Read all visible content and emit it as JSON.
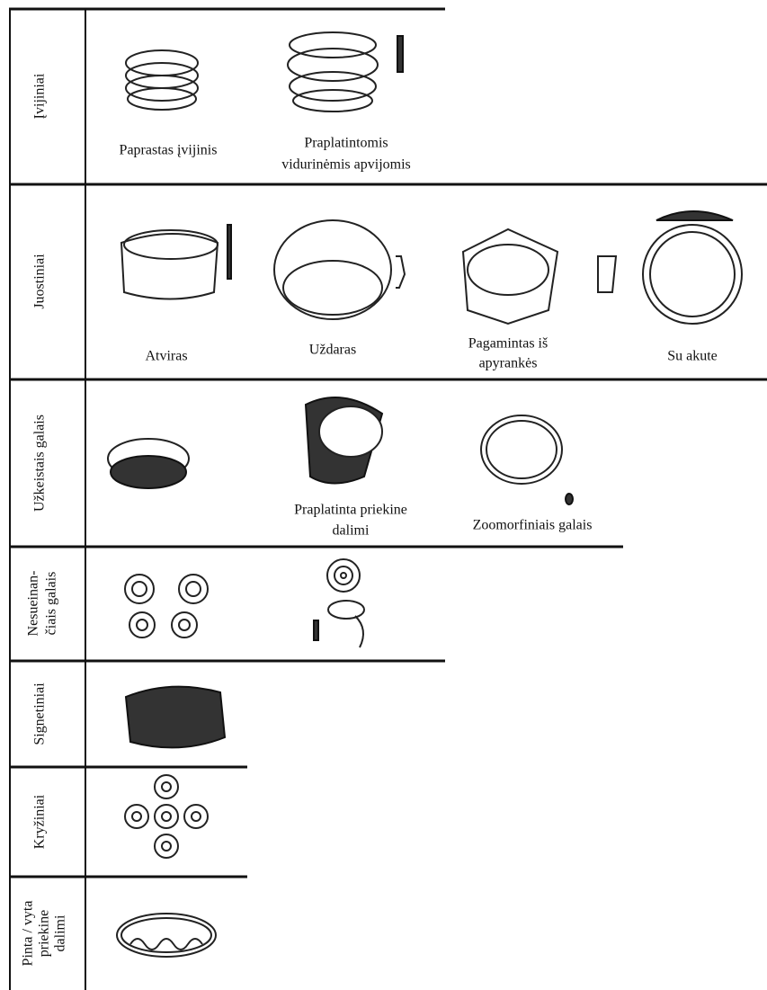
{
  "rows": [
    {
      "label": [
        "Įvijiniai"
      ],
      "items": [
        {
          "caption": [
            "Paprastas įvijinis"
          ]
        },
        {
          "caption": [
            "Praplatintomis",
            "vidurinėmis apvijomis"
          ]
        }
      ]
    },
    {
      "label": [
        "Juostiniai"
      ],
      "items": [
        {
          "caption": [
            "Atviras"
          ]
        },
        {
          "caption": [
            "Uždaras"
          ]
        },
        {
          "caption": [
            "Pagamintas iš",
            "apyrankės"
          ]
        },
        {
          "caption": [
            "Su akute"
          ]
        }
      ]
    },
    {
      "label": [
        "Užkeistais galais"
      ],
      "items": [
        {
          "caption": [
            "Praplatinta priekine",
            "dalimi"
          ]
        },
        {
          "caption": [
            "Zoomorfiniais galais"
          ]
        }
      ]
    },
    {
      "label": [
        "Nesueinan-",
        "čiais galais"
      ]
    },
    {
      "label": [
        "Signetiniai"
      ]
    },
    {
      "label": [
        "Kryžiniai"
      ]
    },
    {
      "label": [
        "Pinta / vyta",
        "priekine",
        "dalimi"
      ]
    }
  ]
}
